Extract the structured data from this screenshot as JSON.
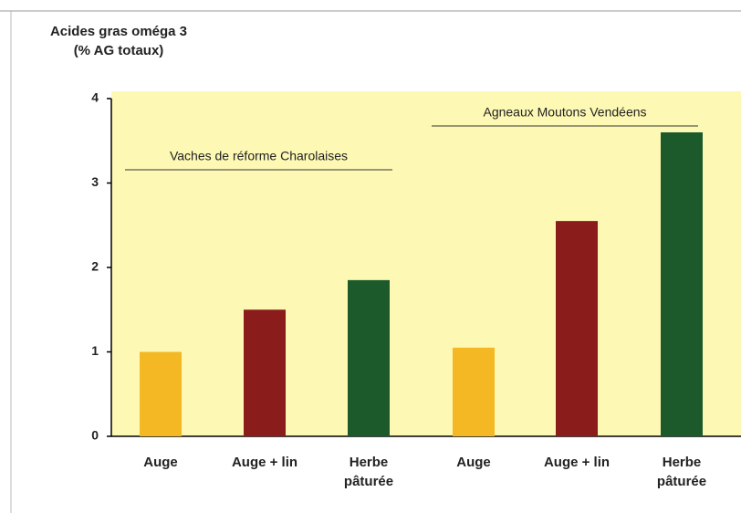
{
  "chart_data": {
    "type": "bar",
    "title": "Acides gras oméga 3\n(% AG totaux)",
    "categories": [
      "Auge",
      "Auge + lin",
      "Herbe\npâturée",
      "Auge",
      "Auge + lin",
      "Herbe\npâturée"
    ],
    "values": [
      1.0,
      1.5,
      1.85,
      1.05,
      2.55,
      3.6
    ],
    "colors": [
      "#f3b823",
      "#8a1c1c",
      "#1c5a2c",
      "#f3b823",
      "#8a1c1c",
      "#1c5a2c"
    ],
    "annotations": [
      "Vaches de réforme Charolaises",
      "Agneaux Moutons Vendéens"
    ],
    "ylim": [
      0,
      4
    ],
    "yticks": [
      0,
      1,
      2,
      3,
      4
    ],
    "grid": false
  }
}
